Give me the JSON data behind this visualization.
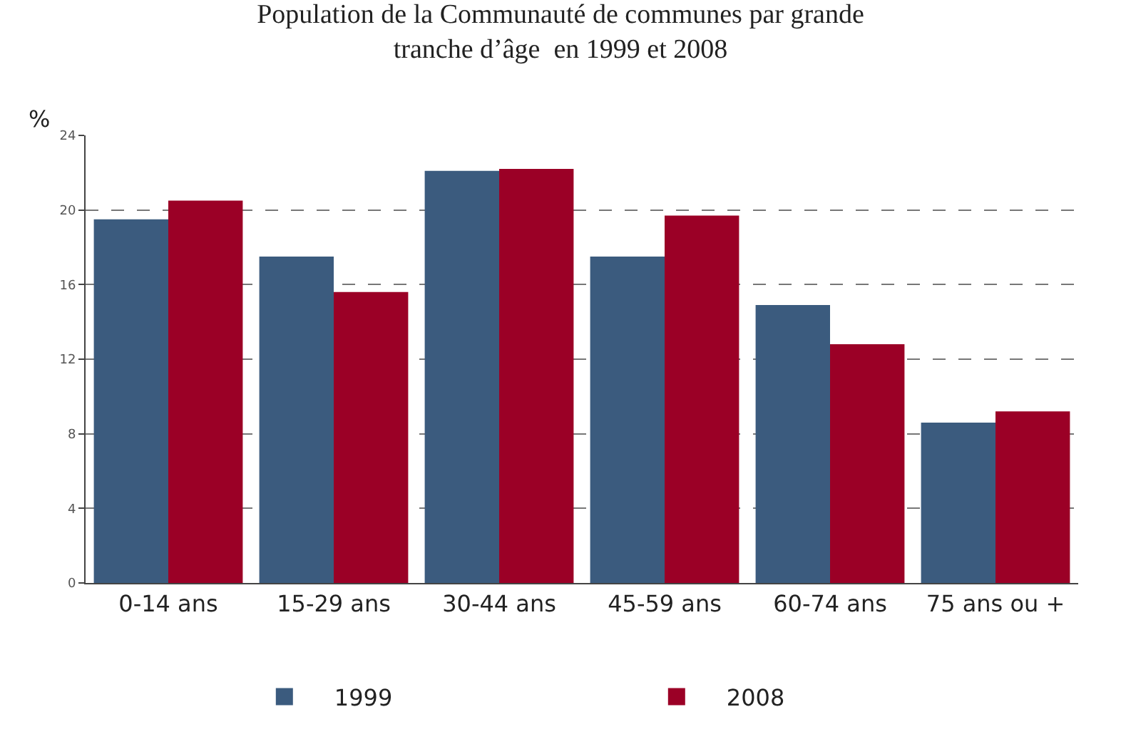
{
  "chart_data": {
    "type": "bar",
    "title": "Population de la Communauté de communes par grande\ntranche d’âge  en 1999 et 2008",
    "ylabel": "%",
    "categories": [
      "0-14 ans",
      "15-29 ans",
      "30-44 ans",
      "45-59 ans",
      "60-74 ans",
      "75 ans ou +"
    ],
    "series": [
      {
        "name": "1999",
        "color": "#3b5b7e",
        "values": [
          19.5,
          17.5,
          22.1,
          17.5,
          14.9,
          8.6
        ]
      },
      {
        "name": "2008",
        "color": "#9b0026",
        "values": [
          20.5,
          15.6,
          22.2,
          19.7,
          12.8,
          9.2
        ]
      }
    ],
    "ylim": [
      0,
      24
    ],
    "yticks": [
      0,
      4,
      8,
      12,
      16,
      20,
      24
    ],
    "grid": "y",
    "legend": "bottom"
  }
}
